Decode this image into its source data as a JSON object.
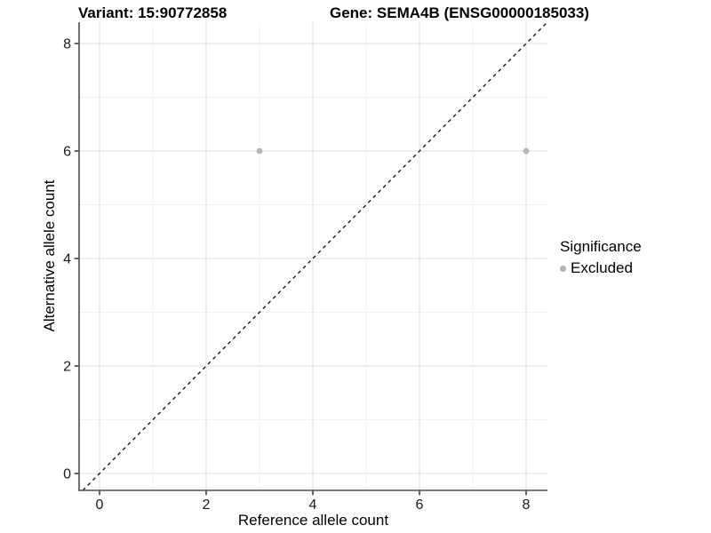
{
  "chart_data": {
    "type": "scatter",
    "title_left": "Variant: 15:90772858",
    "title_right": "Gene: SEMA4B (ENSG00000185033)",
    "xlabel": "Reference allele count",
    "ylabel": "Alternative allele count",
    "xlim": [
      -0.383,
      8.4
    ],
    "ylim": [
      -0.314,
      8.397
    ],
    "x_ticks": [
      0,
      2,
      4,
      6,
      8
    ],
    "y_ticks": [
      0,
      2,
      4,
      6,
      8
    ],
    "x_minor_ticks": [
      1,
      3,
      5,
      7
    ],
    "y_minor_ticks": [
      1,
      3,
      5,
      7
    ],
    "grid": {
      "major": true,
      "minor": true
    },
    "series": [
      {
        "name": "Excluded",
        "marker": "circle",
        "color": "#b5b5b5",
        "points": [
          {
            "x": 3,
            "y": 6
          },
          {
            "x": 8,
            "y": 6
          }
        ]
      }
    ],
    "identity_line": {
      "equation": "y = x",
      "style": "dashed",
      "color": "#1a1a1a"
    },
    "legend": {
      "title": "Significance",
      "position": "right",
      "items": [
        {
          "label": "Excluded",
          "color": "#b0b0b0",
          "marker": "circle"
        }
      ]
    },
    "colors": {
      "grid_major": "#e3e3e3",
      "grid_minor": "#f0f0f0",
      "axis_line": "#4d4d4d",
      "tick_mark": "#333333",
      "tick_label": "#1a1a1a",
      "point": "#b5b5b5",
      "background": "#ffffff"
    }
  }
}
